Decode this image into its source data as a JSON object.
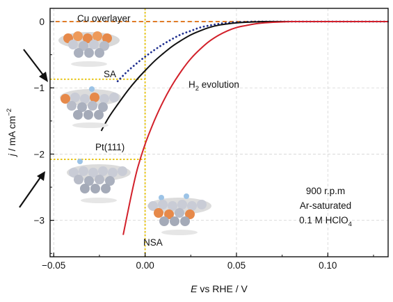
{
  "chart_data": {
    "type": "line",
    "xlabel_pre": "E",
    "xlabel_post": " vs RHE / V",
    "ylabel_pre": "j",
    "ylabel_post": " / mA cm",
    "ylabel_sup": "−2",
    "xlim": [
      -0.052,
      0.133
    ],
    "ylim": [
      -3.55,
      0.2
    ],
    "x_ticks": [
      -0.05,
      0.0,
      0.05,
      0.1
    ],
    "x_tick_labels": [
      "−0.05",
      "0.00",
      "0.05",
      "0.10"
    ],
    "y_ticks": [
      0,
      -1,
      -2,
      -3
    ],
    "y_tick_labels": [
      "0",
      "−1",
      "−2",
      "−3"
    ],
    "grid": true,
    "series": [
      {
        "name": "Cu overlayer",
        "color": "#e07b26",
        "style": "dashed",
        "x": [
          -0.049,
          0.133
        ],
        "y": [
          0.0,
          0.0
        ]
      },
      {
        "name": "SA",
        "color": "#1f2f8f",
        "style": "dotted",
        "x": [
          -0.015,
          -0.01,
          -0.005,
          0.0,
          0.005,
          0.01,
          0.015,
          0.02,
          0.025,
          0.03,
          0.035,
          0.04,
          0.045,
          0.05,
          0.055,
          0.06,
          0.07,
          0.133
        ],
        "y": [
          -0.9,
          -0.76,
          -0.64,
          -0.53,
          -0.43,
          -0.34,
          -0.26,
          -0.19,
          -0.14,
          -0.09,
          -0.06,
          -0.035,
          -0.02,
          -0.01,
          -0.005,
          0.0,
          0.0,
          0.0
        ]
      },
      {
        "name": "Pt(111)",
        "color": "#111111",
        "style": "solid",
        "x": [
          -0.024,
          -0.02,
          -0.015,
          -0.01,
          -0.005,
          0.0,
          0.005,
          0.01,
          0.015,
          0.02,
          0.025,
          0.03,
          0.035,
          0.04,
          0.045,
          0.05,
          0.055,
          0.06,
          0.065,
          0.07,
          0.08,
          0.133
        ],
        "y": [
          -1.65,
          -1.45,
          -1.25,
          -1.06,
          -0.89,
          -0.74,
          -0.6,
          -0.48,
          -0.37,
          -0.28,
          -0.2,
          -0.14,
          -0.09,
          -0.055,
          -0.035,
          -0.02,
          -0.01,
          -0.005,
          0.0,
          0.0,
          0.0,
          0.0
        ]
      },
      {
        "name": "NSA",
        "color": "#d2202a",
        "style": "solid",
        "x": [
          -0.012,
          -0.01,
          -0.007,
          -0.004,
          0.0,
          0.005,
          0.01,
          0.015,
          0.02,
          0.025,
          0.03,
          0.035,
          0.04,
          0.045,
          0.05,
          0.055,
          0.06,
          0.065,
          0.07,
          0.075,
          0.08,
          0.09,
          0.133
        ],
        "y": [
          -3.22,
          -2.95,
          -2.55,
          -2.2,
          -1.85,
          -1.5,
          -1.2,
          -0.95,
          -0.74,
          -0.56,
          -0.42,
          -0.3,
          -0.21,
          -0.14,
          -0.09,
          -0.06,
          -0.035,
          -0.02,
          -0.01,
          -0.005,
          0.0,
          0.0,
          0.0
        ]
      }
    ],
    "reference_lines": {
      "color": "#e8c619",
      "vertical_x": 0.0,
      "horizontal": [
        {
          "y": -0.87,
          "x_from": -0.052,
          "x_to": 0.0
        },
        {
          "y": -2.08,
          "x_from": -0.052,
          "x_to": 0.0
        }
      ]
    },
    "annotations": {
      "cu_overlayer": "Cu overlayer",
      "sa": "SA",
      "h2_pre": "H",
      "h2_sub": "2",
      "h2_post": " evolution",
      "pt111": "Pt(111)",
      "nsa": "NSA",
      "cond_line1": "900 r.p.m",
      "cond_line2": "Ar-saturated",
      "cond_line3_pre": "0.1 M HClO",
      "cond_line3_sub": "4"
    }
  }
}
